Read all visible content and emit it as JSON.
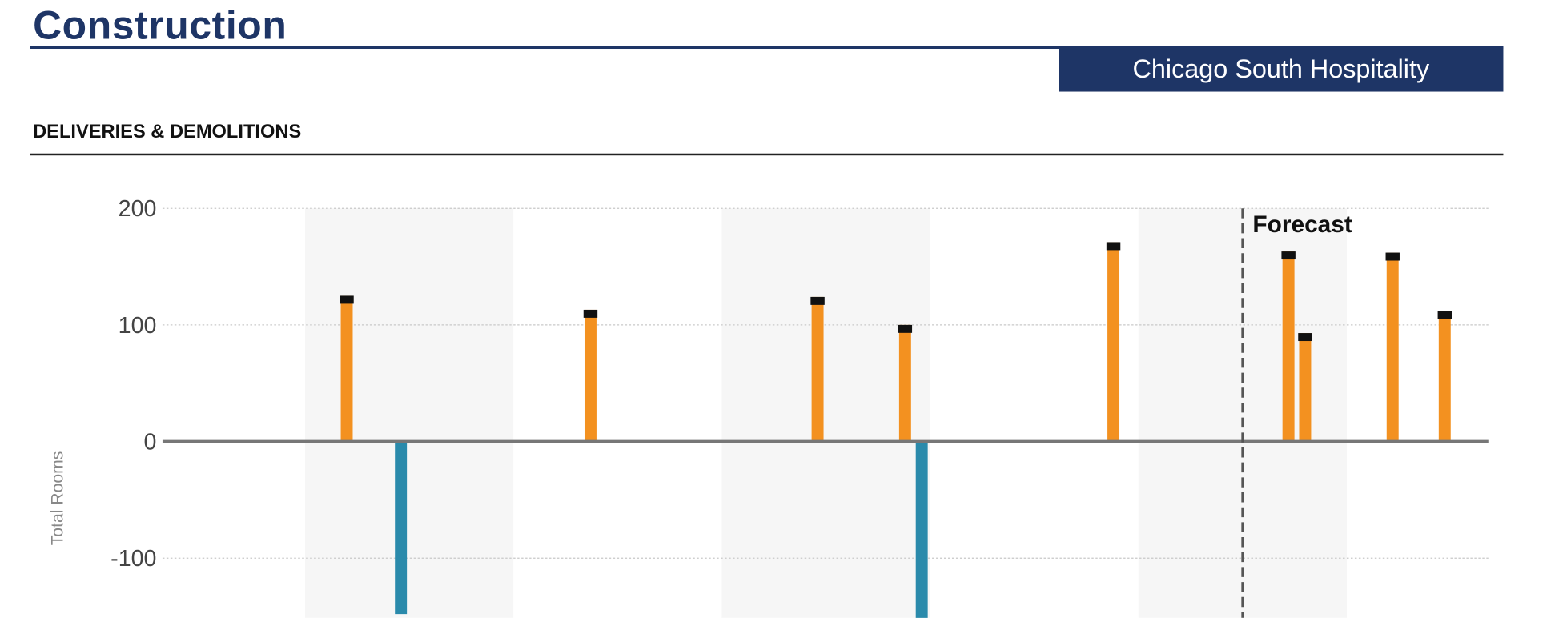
{
  "header": {
    "title": "Construction",
    "market": "Chicago South Hospitality"
  },
  "section": {
    "title": "DELIVERIES & DEMOLITIONS"
  },
  "colors": {
    "navy": "#1e3566",
    "deliveries": "#f39120",
    "cap": "#111111",
    "demolitions": "#2a8aab",
    "band": "#f6f6f6"
  },
  "chart_data": {
    "type": "bar",
    "ylabel": "Total Rooms",
    "ylim": [
      -151,
      205
    ],
    "yticks": [
      "200",
      "100",
      "0",
      "-100"
    ],
    "ytick_values": [
      200,
      100,
      0,
      -100
    ],
    "grid": true,
    "forecast_label": "Forecast",
    "forecast_x": 5.5,
    "shaded_periods": [
      1,
      3,
      5
    ],
    "series": [
      {
        "x": [
          1.2,
          2.37,
          3.46,
          3.88,
          4.88,
          5.72,
          5.8,
          6.22,
          6.47
        ],
        "values": [
          125,
          113,
          124,
          100,
          171,
          163,
          93,
          162,
          112
        ],
        "kind": "delivery"
      },
      {
        "x": [
          1.46,
          3.96
        ],
        "values": [
          -148,
          -160
        ],
        "kind": "demolition"
      }
    ]
  }
}
